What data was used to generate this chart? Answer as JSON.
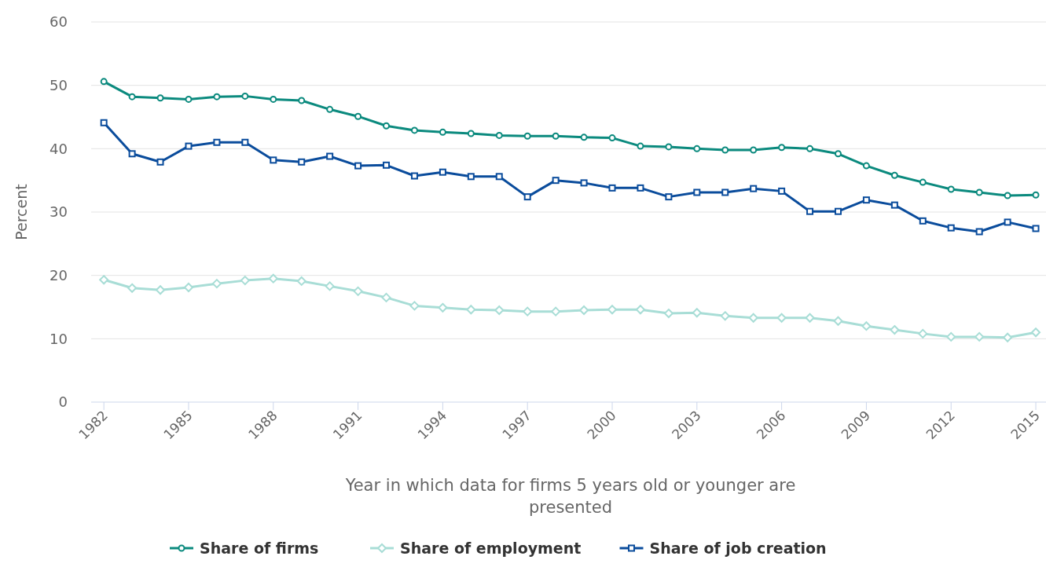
{
  "chart_data": {
    "type": "line",
    "xlabel": "Year in which data for firms 5 years old or younger are presented",
    "ylabel": "Percent",
    "x": [
      1982,
      1983,
      1984,
      1985,
      1986,
      1987,
      1988,
      1989,
      1990,
      1991,
      1992,
      1993,
      1994,
      1995,
      1996,
      1997,
      1998,
      1999,
      2000,
      2001,
      2002,
      2003,
      2004,
      2005,
      2006,
      2007,
      2008,
      2009,
      2010,
      2011,
      2012,
      2013,
      2014,
      2015
    ],
    "xlim": [
      1981.55,
      2015.5
    ],
    "xticks": [
      1982,
      1985,
      1988,
      1991,
      1994,
      1997,
      2000,
      2003,
      2006,
      2009,
      2012,
      2015
    ],
    "ylim": [
      0,
      60
    ],
    "yticks": [
      0,
      10,
      20,
      30,
      40,
      50,
      60
    ],
    "grid": "y",
    "legend": "bottom",
    "series": [
      {
        "name": "Share of firms",
        "color": "#0b8a7e",
        "marker": "circle",
        "values": [
          50.6,
          48.2,
          48.0,
          47.8,
          48.2,
          48.3,
          47.8,
          47.6,
          46.2,
          45.1,
          43.6,
          42.9,
          42.6,
          42.4,
          42.1,
          42.0,
          42.0,
          41.8,
          41.7,
          40.4,
          40.3,
          40.0,
          39.8,
          39.8,
          40.2,
          40.0,
          39.2,
          37.3,
          35.8,
          34.7,
          33.6,
          33.1,
          32.6,
          32.7
        ]
      },
      {
        "name": "Share of employment",
        "color": "#a8ddd6",
        "marker": "diamond",
        "values": [
          19.3,
          18.0,
          17.7,
          18.1,
          18.7,
          19.2,
          19.5,
          19.1,
          18.3,
          17.5,
          16.5,
          15.2,
          14.9,
          14.6,
          14.5,
          14.3,
          14.3,
          14.5,
          14.6,
          14.6,
          14.0,
          14.1,
          13.6,
          13.3,
          13.3,
          13.3,
          12.8,
          12.0,
          11.4,
          10.8,
          10.3,
          10.3,
          10.2,
          11.0
        ]
      },
      {
        "name": "Share of job creation",
        "color": "#0a4c9c",
        "marker": "square",
        "values": [
          44.1,
          39.2,
          37.9,
          40.4,
          41.0,
          41.0,
          38.2,
          37.9,
          38.8,
          37.3,
          37.4,
          35.7,
          36.3,
          35.6,
          35.6,
          32.4,
          35.0,
          34.6,
          33.8,
          33.8,
          32.4,
          33.1,
          33.1,
          33.7,
          33.3,
          30.1,
          30.1,
          31.9,
          31.1,
          28.6,
          27.5,
          26.9,
          28.4,
          27.4
        ]
      }
    ]
  }
}
